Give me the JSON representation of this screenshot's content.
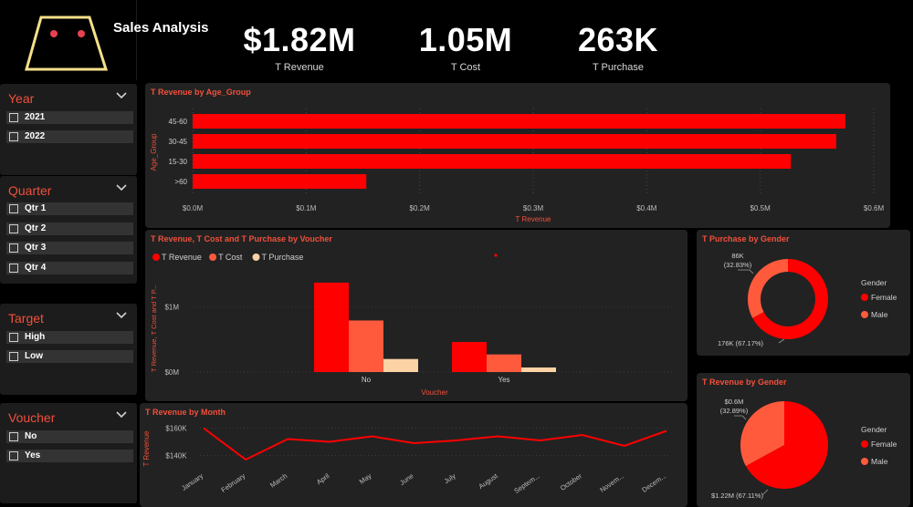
{
  "header": {
    "title": "Sales Analysis",
    "kpis": [
      {
        "value": "$1.82M",
        "label": "T Revenue"
      },
      {
        "value": "1.05M",
        "label": "T Cost"
      },
      {
        "value": "263K",
        "label": "T Purchase"
      }
    ]
  },
  "slicers": {
    "year": {
      "title": "Year",
      "items": [
        "2021",
        "2022"
      ]
    },
    "quarter": {
      "title": "Quarter",
      "items": [
        "Qtr 1",
        "Qtr 2",
        "Qtr 3",
        "Qtr 4"
      ]
    },
    "target": {
      "title": "Target",
      "items": [
        "High",
        "Low"
      ]
    },
    "voucher": {
      "title": "Voucher",
      "items": [
        "No",
        "Yes"
      ]
    }
  },
  "colors": {
    "primary_red": "#ff0000",
    "orange_red": "#ff5a3c",
    "peach": "#fcd3a4",
    "title_accent": "#f0503c",
    "panel_bg": "#222222",
    "logo_outline": "#f5e08a",
    "logo_dot": "#e8424f"
  },
  "chart_data": [
    {
      "id": "age",
      "type": "bar",
      "orientation": "horizontal",
      "title": "T Revenue by Age_Group",
      "xlabel": "T Revenue",
      "ylabel": "Age_Group",
      "categories": [
        "45-60",
        "30-45",
        "15-30",
        ">60"
      ],
      "values": [
        0.575,
        0.567,
        0.527,
        0.153
      ],
      "xlim": [
        0,
        0.6
      ],
      "xticks": [
        "$0.0M",
        "$0.1M",
        "$0.2M",
        "$0.3M",
        "$0.4M",
        "$0.5M",
        "$0.6M"
      ],
      "grid": true
    },
    {
      "id": "voucher",
      "type": "bar",
      "title": "T Revenue, T Cost and T Purchase by Voucher",
      "xlabel": "Voucher",
      "ylabel": "T Revenue, T Cost and T P...",
      "categories": [
        "No",
        "Yes"
      ],
      "series": [
        {
          "name": "T Revenue",
          "values": [
            1.37,
            0.46
          ],
          "color": "#ff0000"
        },
        {
          "name": "T Cost",
          "values": [
            0.79,
            0.27
          ],
          "color": "#ff5a3c"
        },
        {
          "name": "T Purchase",
          "values": [
            0.2,
            0.07
          ],
          "color": "#fcd3a4"
        }
      ],
      "ylim": [
        0,
        1.9
      ],
      "yticks": [
        {
          "value": 0,
          "label": "$0M"
        },
        {
          "value": 1,
          "label": "$1M"
        }
      ],
      "legend": "top-left"
    },
    {
      "id": "purchase_gender",
      "type": "pie",
      "donut": true,
      "title": "T Purchase by Gender",
      "legend_title": "Gender",
      "categories": [
        "Female",
        "Male"
      ],
      "values": [
        176,
        86
      ],
      "value_labels": [
        "176K (67.17%)",
        "86K\n(32.83%)"
      ],
      "colors": [
        "#ff0000",
        "#ff5a3c"
      ],
      "legend": "right"
    },
    {
      "id": "revenue_gender",
      "type": "pie",
      "donut": false,
      "title": "T Revenue by Gender",
      "legend_title": "Gender",
      "categories": [
        "Female",
        "Male"
      ],
      "values": [
        1.22,
        0.6
      ],
      "value_labels": [
        "$1.22M (67.11%)",
        "$0.6M\n(32.89%)"
      ],
      "colors": [
        "#ff0000",
        "#ff5a3c"
      ],
      "legend": "right"
    },
    {
      "id": "month",
      "type": "line",
      "title": "T Revenue by Month",
      "ylabel": "T Revenue",
      "categories": [
        "January",
        "February",
        "March",
        "April",
        "May",
        "June",
        "July",
        "August",
        "Septem...",
        "October",
        "Novem...",
        "Decem..."
      ],
      "values": [
        160,
        137,
        152,
        150,
        154,
        149,
        151,
        154,
        151,
        155,
        147,
        158
      ],
      "ylim": [
        135,
        165
      ],
      "yticks": [
        {
          "value": 140,
          "label": "$140K"
        },
        {
          "value": 160,
          "label": "$160K"
        }
      ],
      "color": "#ff0000"
    }
  ]
}
